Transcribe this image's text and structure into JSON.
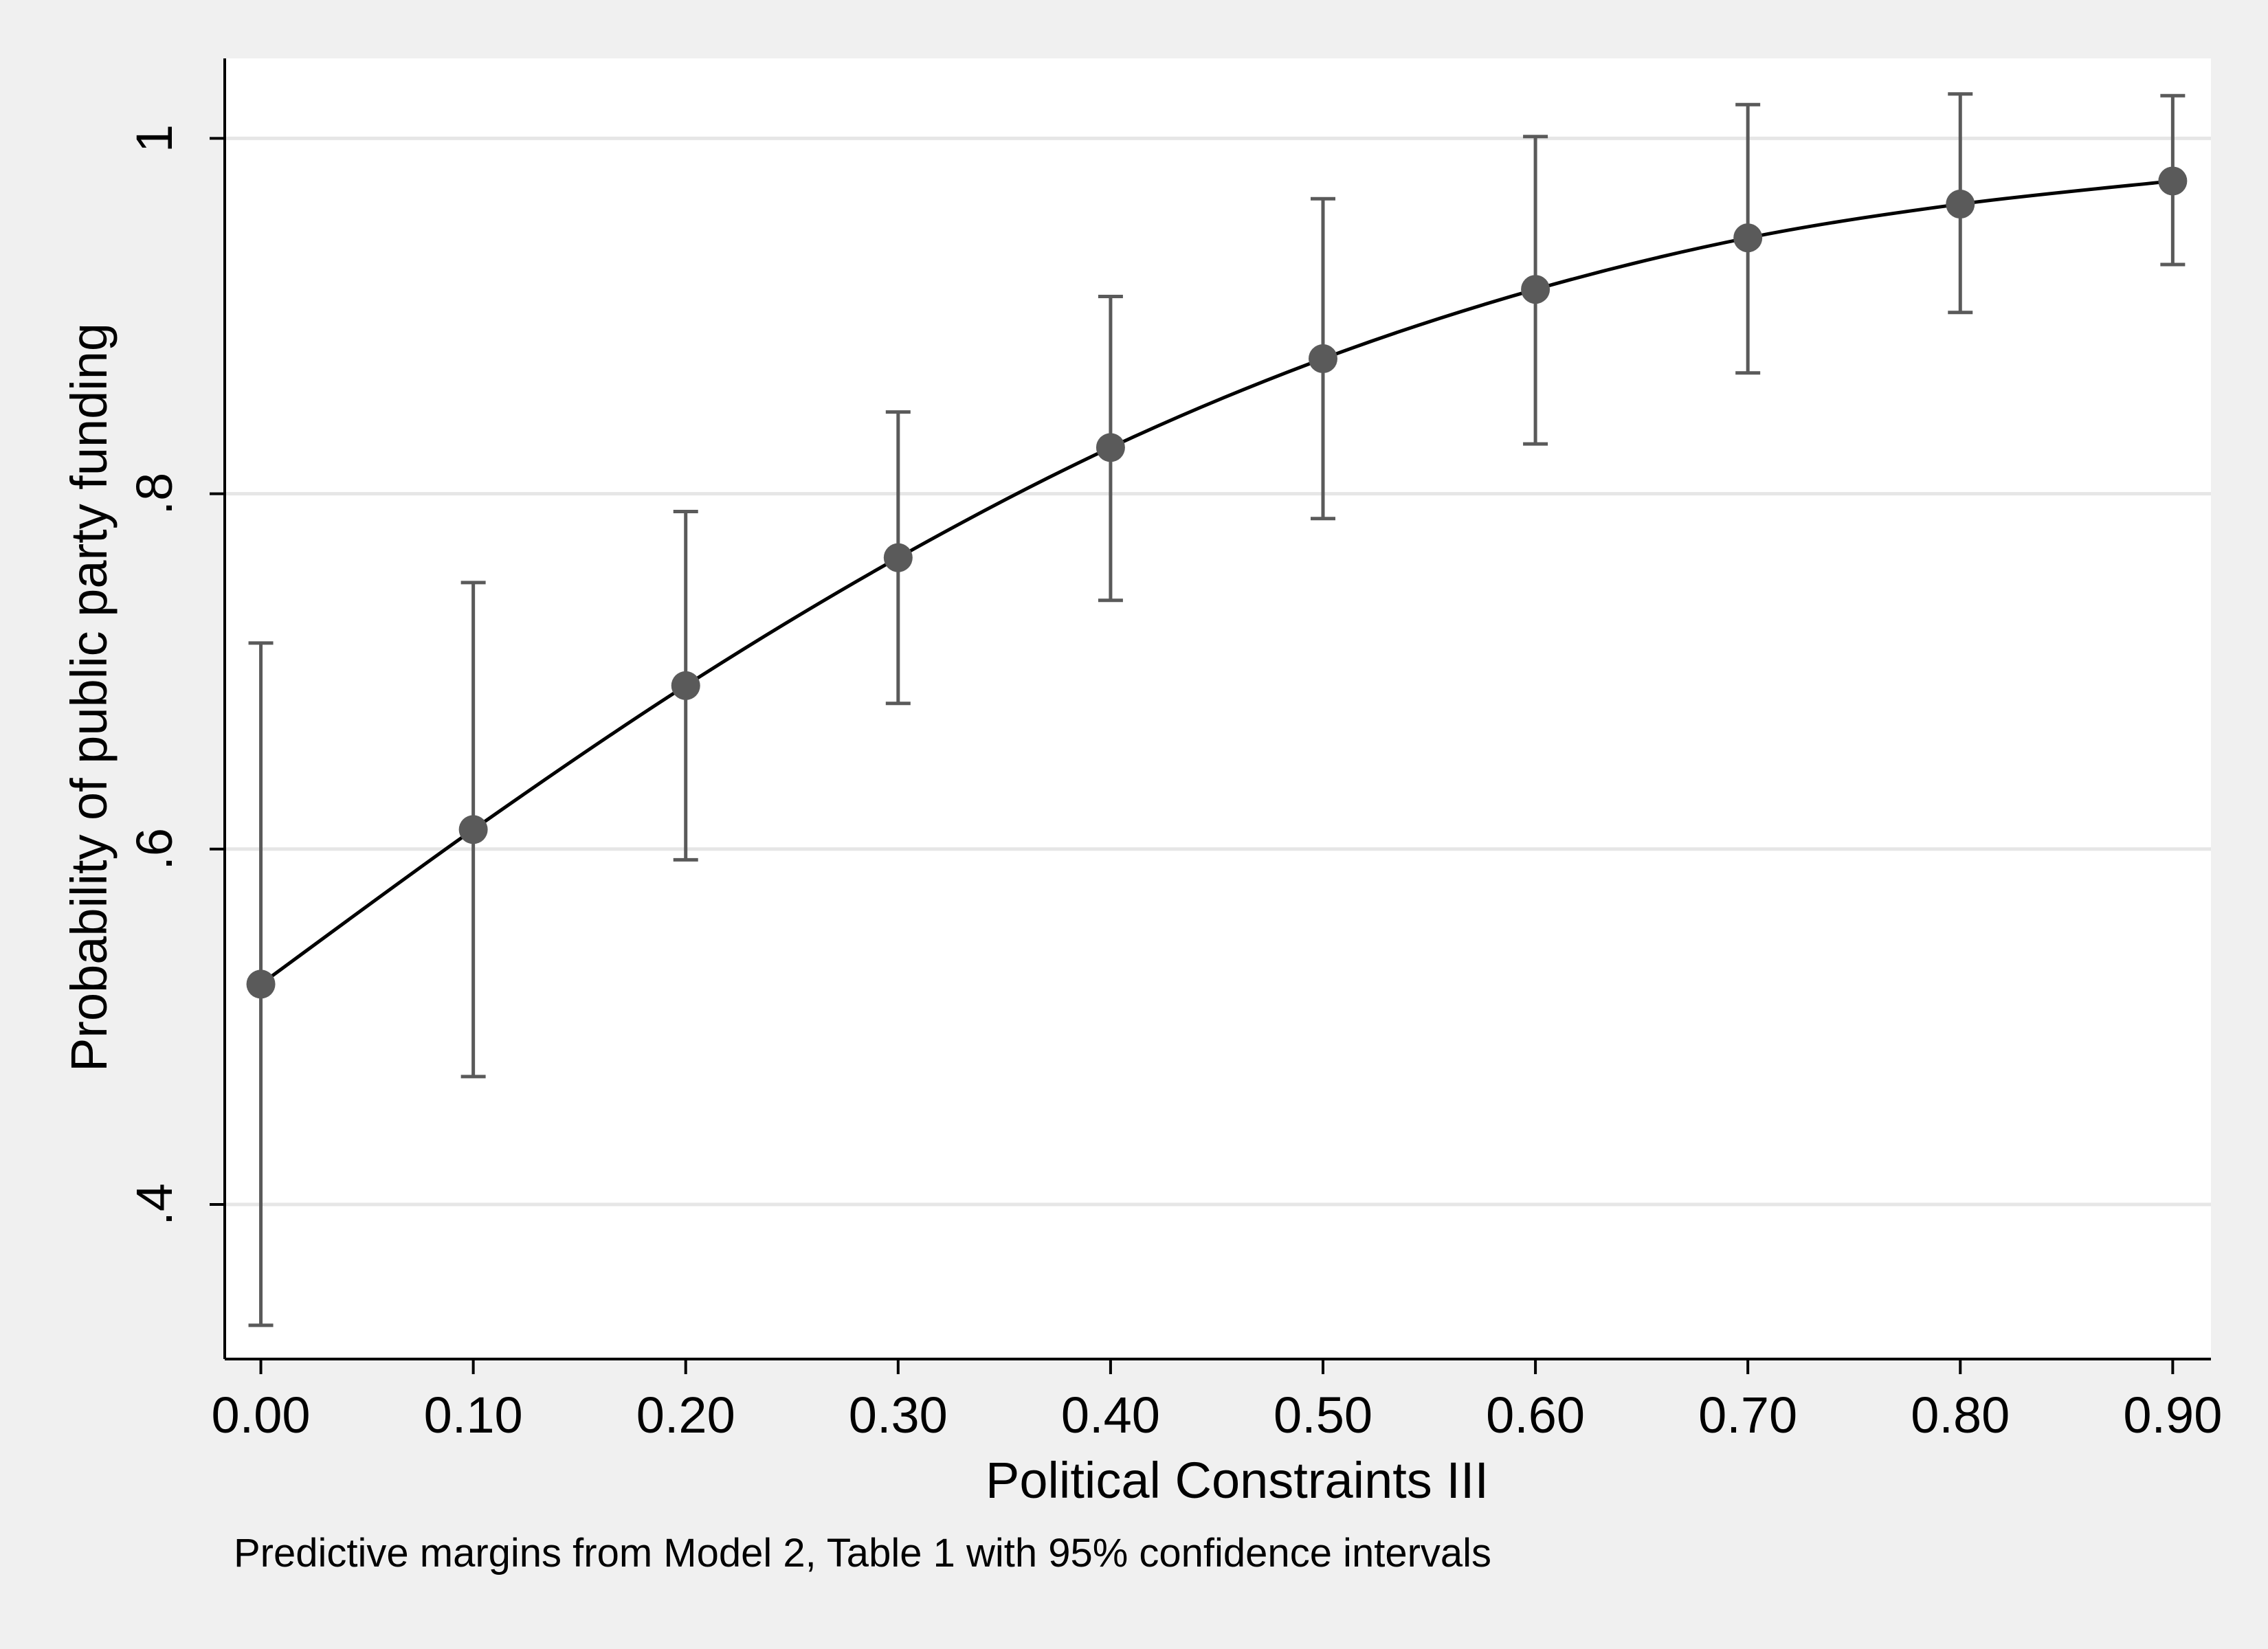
{
  "chart_data": {
    "type": "line",
    "title": "",
    "xlabel": "Political Constraints III",
    "ylabel": "Probability of public party funding",
    "note": "Predictive margins from Model 2, Table 1 with 95% confidence intervals",
    "x_ticks": [
      "0.00",
      "0.10",
      "0.20",
      "0.30",
      "0.40",
      "0.50",
      "0.60",
      "0.70",
      "0.80",
      "0.90"
    ],
    "y_ticks": [
      {
        "value": 0.4,
        "label": ".4"
      },
      {
        "value": 0.6,
        "label": ".6"
      },
      {
        "value": 0.8,
        "label": ".8"
      },
      {
        "value": 1.0,
        "label": "1"
      }
    ],
    "xlim": [
      -0.017,
      0.918
    ],
    "ylim": [
      0.313,
      1.045
    ],
    "grid": true,
    "colors": {
      "line": "#000000",
      "marker": "#5a5a5a",
      "error_bar": "#5a5a5a",
      "grid": "#e6e6e6",
      "plot_background": "#ffffff",
      "outer_background": "#f0f0f0"
    },
    "series": [
      {
        "x": [
          0.0,
          0.1,
          0.2,
          0.3,
          0.4,
          0.5,
          0.6,
          0.7,
          0.8,
          0.9
        ],
        "y": [
          0.524,
          0.611,
          0.692,
          0.764,
          0.826,
          0.876,
          0.915,
          0.944,
          0.963,
          0.976
        ],
        "ci_low": [
          0.332,
          0.472,
          0.594,
          0.682,
          0.74,
          0.786,
          0.828,
          0.868,
          0.902,
          0.929
        ],
        "ci_high": [
          0.716,
          0.75,
          0.79,
          0.846,
          0.911,
          0.966,
          1.001,
          1.019,
          1.025,
          1.024
        ]
      }
    ]
  }
}
